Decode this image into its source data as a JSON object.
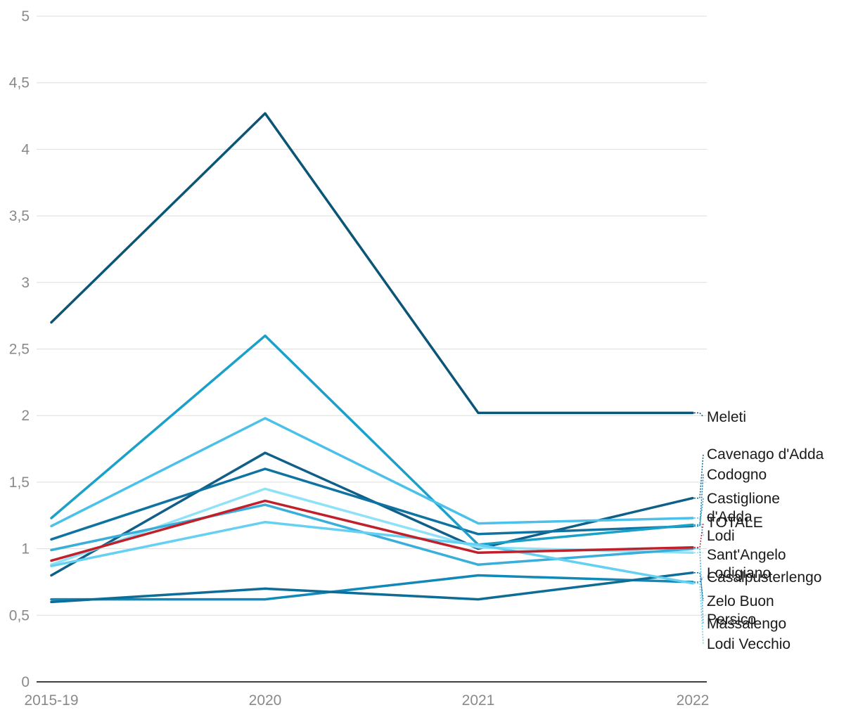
{
  "chart_data": {
    "type": "line",
    "title": "",
    "xlabel": "",
    "ylabel": "",
    "categories": [
      "2015-19",
      "2020",
      "2021",
      "2022"
    ],
    "ylim": [
      0,
      5
    ],
    "yticks": [
      "0",
      "0,5",
      "1",
      "1,5",
      "2",
      "2,5",
      "3",
      "3,5",
      "4",
      "4,5",
      "5"
    ],
    "yticks_values": [
      0,
      0.5,
      1,
      1.5,
      2,
      2.5,
      3,
      3.5,
      4,
      4.5,
      5
    ],
    "grid": true,
    "legend": "direct labels at right",
    "series": [
      {
        "name": "Meleti",
        "label_lines": [
          "Meleti"
        ],
        "color": "#0b5577",
        "values": [
          2.7,
          4.27,
          2.02,
          2.02
        ]
      },
      {
        "name": "Cavenago d'Adda",
        "label_lines": [
          "Cavenago d'Adda"
        ],
        "color": "#0f5f88",
        "values": [
          0.8,
          1.72,
          1.0,
          1.38
        ]
      },
      {
        "name": "Codogno",
        "label_lines": [
          "Codogno"
        ],
        "color": "#0f73a2",
        "values": [
          1.07,
          1.6,
          1.11,
          1.17
        ]
      },
      {
        "name": "Castiglione d'Adda",
        "label_lines": [
          "Castiglione",
          "d'Adda"
        ],
        "color": "#1aa0c9",
        "values": [
          1.23,
          2.6,
          1.03,
          1.18
        ]
      },
      {
        "name": "TOTALE",
        "label_lines": [
          "TOTALE"
        ],
        "color": "#c0202a",
        "values": [
          0.91,
          1.36,
          0.97,
          1.01
        ]
      },
      {
        "name": "Lodi",
        "label_lines": [
          "Lodi"
        ],
        "color": "#4ac0ea",
        "values": [
          1.17,
          1.98,
          1.19,
          1.23
        ]
      },
      {
        "name": "Sant'Angelo Lodigiano",
        "label_lines": [
          "Sant'Angelo",
          "Lodigiano"
        ],
        "color": "#8ee2f7",
        "values": [
          0.88,
          1.45,
          1.01,
          0.97
        ]
      },
      {
        "name": "Casalpusterlengo",
        "label_lines": [
          "Casalpusterlengo"
        ],
        "color": "#1189b8",
        "values": [
          0.62,
          0.62,
          0.8,
          0.75
        ]
      },
      {
        "name": "Zelo Buon Persico",
        "label_lines": [
          "Zelo Buon",
          "Persico"
        ],
        "color": "#0e6d97",
        "values": [
          0.6,
          0.7,
          0.62,
          0.82
        ]
      },
      {
        "name": "Massalengo",
        "label_lines": [
          "Massalengo"
        ],
        "color": "#3aaedb",
        "values": [
          0.99,
          1.33,
          0.88,
          1.0
        ]
      },
      {
        "name": "Lodi Vecchio",
        "label_lines": [
          "Lodi Vecchio"
        ],
        "color": "#66d0f2",
        "values": [
          0.87,
          1.2,
          1.03,
          0.74
        ]
      }
    ]
  }
}
